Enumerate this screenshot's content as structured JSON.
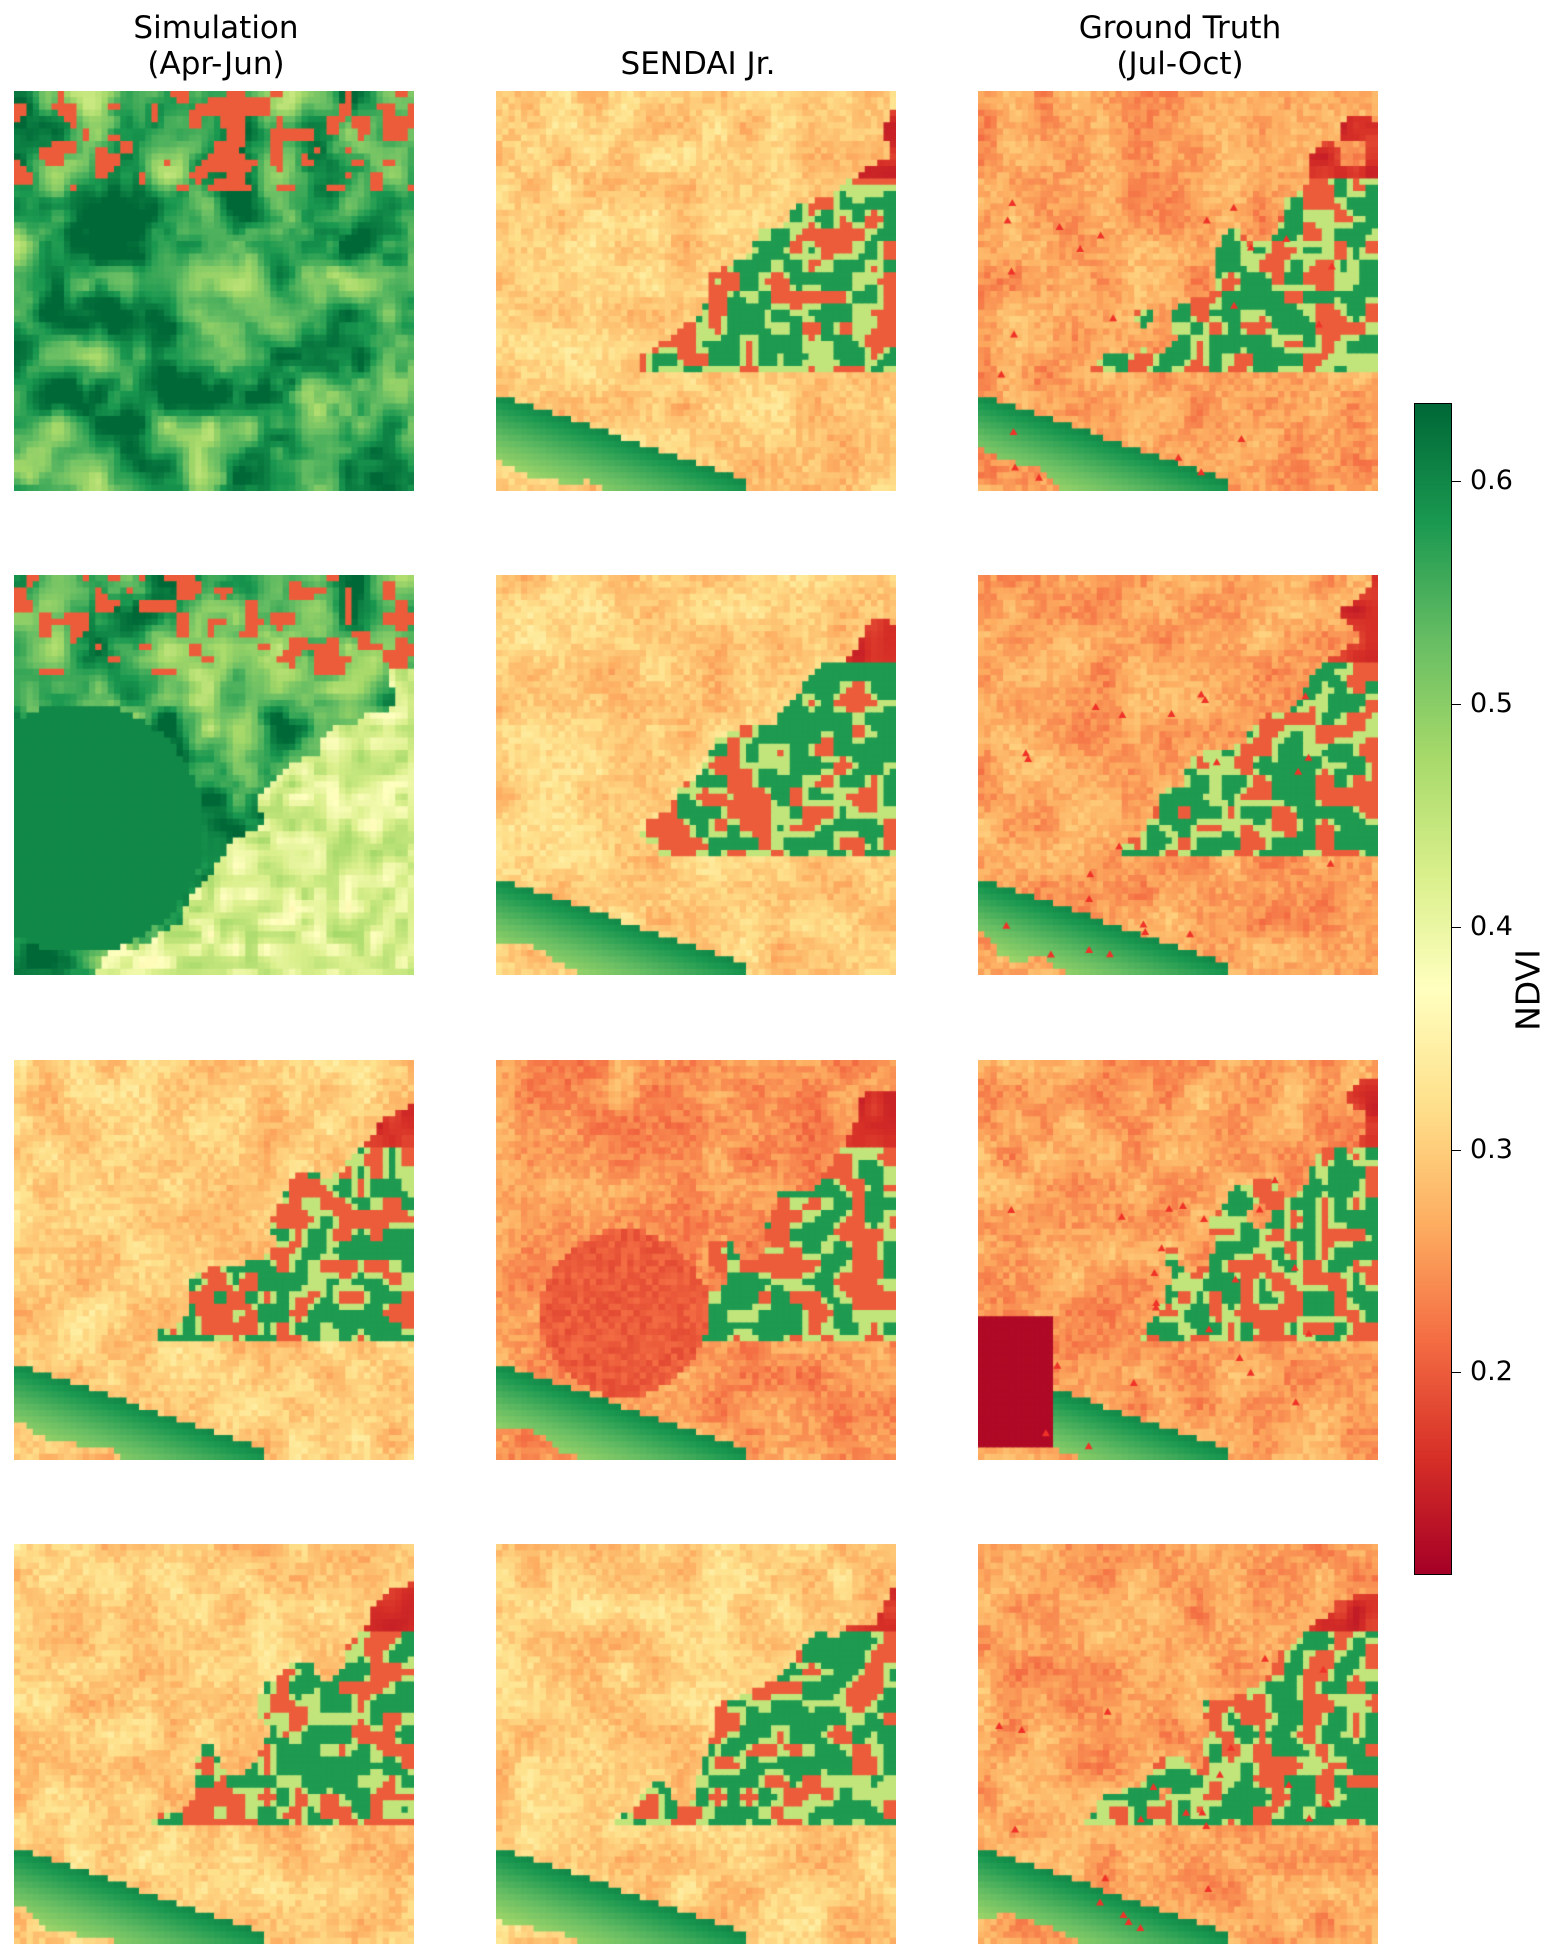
{
  "chart_data": {
    "type": "heatmap",
    "layout": "grid",
    "rows": 4,
    "columns": [
      "Simulation\n(Apr-Jun)",
      "SENDAI Jr.",
      "Ground Truth\n(Jul-Oct)"
    ],
    "panel_grid_cells": 64,
    "colormap": "RdYlGn",
    "colorbar": {
      "label": "NDVI",
      "vmin": 0.11,
      "vmax": 0.635,
      "ticks": [
        0.2,
        0.3,
        0.4,
        0.5,
        0.6
      ],
      "tick_labels": [
        "0.2",
        "0.3",
        "0.4",
        "0.5",
        "0.6"
      ],
      "placement": "right"
    },
    "panel_summaries": [
      [
        {
          "mean": 0.55,
          "note": "mostly green"
        },
        {
          "mean": 0.32
        },
        {
          "mean": 0.27,
          "markers": "red triangles"
        }
      ],
      [
        {
          "mean": 0.57,
          "note": "mostly green"
        },
        {
          "mean": 0.31
        },
        {
          "mean": 0.27,
          "markers": "red triangles"
        }
      ],
      [
        {
          "mean": 0.33
        },
        {
          "mean": 0.26
        },
        {
          "mean": 0.26,
          "markers": "red triangles"
        }
      ],
      [
        {
          "mean": 0.32
        },
        {
          "mean": 0.29
        },
        {
          "mean": 0.27,
          "markers": "red triangles"
        }
      ]
    ]
  }
}
